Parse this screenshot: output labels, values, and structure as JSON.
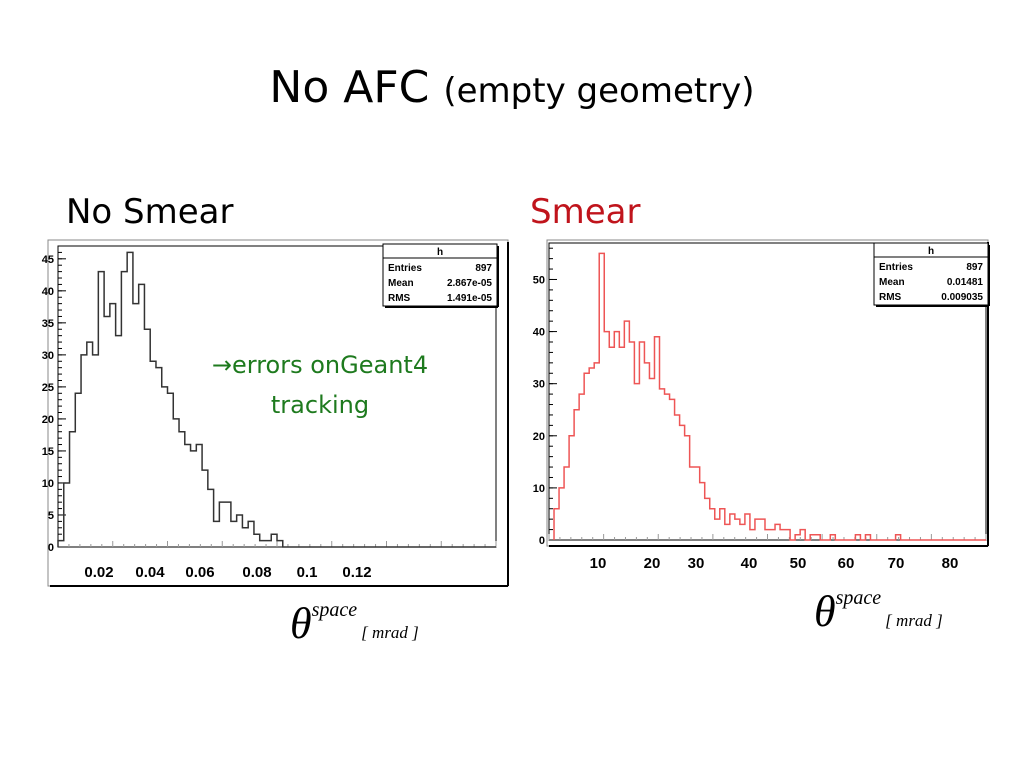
{
  "slide": {
    "title_main": "No AFC",
    "title_sub": "(empty geometry)",
    "left_label": "No Smear",
    "right_label": "Smear",
    "note_arrow": "→",
    "note_line1": "errors onGeant4",
    "note_line2": "tracking",
    "colors": {
      "right_label": "#c0141c",
      "note": "#1e7a1e",
      "left_hist": "#333333",
      "right_hist": "#ee5555"
    }
  },
  "chart_data": [
    {
      "type": "bar",
      "hist_name": "h",
      "stats": {
        "entries_label": "Entries",
        "entries": "897",
        "mean_label": "Mean",
        "mean": "2.867e-05",
        "rms_label": "RMS",
        "rms": "1.491e-05"
      },
      "x": [
        0.0025,
        0.0075,
        0.0125,
        0.0175,
        0.0225,
        0.0275,
        0.0325,
        0.0375,
        0.0425,
        0.0475,
        0.0525,
        0.0575,
        0.0625,
        0.0675,
        0.0725,
        0.0775,
        0.0825,
        0.0875,
        0.0925,
        0.0975,
        0.1025,
        0.1075,
        0.1125,
        0.1175,
        0.1225,
        0.1275,
        0.1325,
        0.1375,
        0.1425,
        0.1475,
        0.1525,
        0.1575,
        0.1625,
        0.1675,
        0.1725,
        0.1775,
        0.1825,
        0.1875,
        0.1925,
        0.1975,
        0.2025,
        0.2075,
        0.2125,
        0.2175,
        0.2225,
        0.2275,
        0.2325,
        0.2375,
        0.2425,
        0.2475,
        0.2525,
        0.2575,
        0.2625,
        0.2675,
        0.2725,
        0.2775,
        0.2825,
        0.2875,
        0.2925,
        0.2975,
        0.3025,
        0.3075,
        0.3125,
        0.3175,
        0.3225,
        0.3275,
        0.3375,
        0.3325,
        0.3425,
        0.3475,
        0.3525,
        0.3575,
        0.3625,
        0.3675,
        0.3725,
        0.3775
      ],
      "values": [
        1,
        10,
        18,
        24,
        30,
        32,
        30,
        43,
        36,
        38,
        33,
        43,
        46,
        38,
        41,
        34,
        29,
        28,
        25,
        24,
        20,
        18,
        16,
        15,
        16,
        12,
        9,
        4,
        7,
        7,
        4,
        5,
        3,
        4,
        2,
        1,
        1,
        2,
        1,
        0,
        0,
        0,
        0,
        0,
        0,
        0,
        0,
        0,
        0,
        0,
        0,
        0,
        0,
        0,
        0,
        0,
        0,
        0,
        0,
        0,
        0,
        0,
        0,
        0,
        0,
        0,
        0,
        0,
        0,
        0,
        0,
        0,
        0,
        0,
        0,
        0
      ],
      "xlim": [
        0,
        0.38
      ],
      "ylim": [
        0,
        47
      ],
      "yticks": [
        0,
        5,
        10,
        15,
        20,
        25,
        30,
        35,
        40,
        45
      ],
      "xticklabels": [
        "0.02",
        "0.04",
        "0.06",
        "0.08",
        "0.1",
        "0.12"
      ],
      "xlabel_symbol": "θ",
      "xlabel_sup": "space",
      "xlabel_unit": "[ mrad ]"
    },
    {
      "type": "bar",
      "hist_name": "h",
      "stats": {
        "entries_label": "Entries",
        "entries": "897",
        "mean_label": "Mean",
        "mean": "0.01481",
        "rms_label": "RMS",
        "rms": "0.009035"
      },
      "x": [
        1.5,
        2.5,
        3.5,
        4.5,
        5.5,
        6.5,
        7.5,
        8.5,
        9.5,
        10.5,
        11.5,
        12.5,
        13.5,
        14.5,
        15.5,
        16.5,
        17.5,
        18.5,
        19.5,
        20.5,
        21.5,
        22.5,
        23.5,
        24.5,
        25.5,
        26.5,
        27.5,
        28.5,
        29.5,
        30.5,
        31.5,
        32.5,
        33.5,
        34.5,
        35.5,
        36.5,
        37.5,
        38.5,
        39.5,
        40.5,
        41.5,
        42.5,
        43.5,
        44.5,
        45.5,
        46.5,
        47.5,
        48.5,
        49.5,
        50.5,
        51.5,
        52.5,
        53.5,
        54.5,
        55.5,
        56.5,
        57.5,
        58.5,
        59.5,
        60.5,
        61.5,
        62.5,
        63.5,
        64.5,
        65.5,
        66.5,
        67.5,
        68.5,
        69.5,
        70.5,
        71.5,
        72.5,
        73.5,
        74.5,
        75.5,
        76.5,
        77.5,
        78.5,
        79.5,
        80.5,
        81.5,
        82.5,
        83.5,
        84.5,
        85.5,
        86.5
      ],
      "values": [
        6,
        10,
        14,
        20,
        25,
        28,
        32,
        33,
        34,
        55,
        40,
        37,
        40,
        37,
        42,
        38,
        30,
        38,
        34,
        31,
        39,
        29,
        28,
        27,
        24,
        22,
        20,
        14,
        14,
        11,
        8,
        6,
        4,
        6,
        3,
        5,
        4,
        3,
        5,
        2,
        4,
        4,
        2,
        2,
        3,
        2,
        2,
        0,
        1,
        2,
        0,
        1,
        1,
        0,
        0,
        1,
        0,
        0,
        0,
        0,
        1,
        0,
        1,
        0,
        0,
        0,
        0,
        0,
        1,
        0,
        0,
        0,
        0,
        0,
        0,
        0,
        0,
        0,
        0,
        0,
        0,
        0,
        0,
        0,
        0,
        0
      ],
      "xlim": [
        0,
        87
      ],
      "ylim": [
        0,
        57
      ],
      "yticks": [
        0,
        10,
        20,
        30,
        40,
        50
      ],
      "xticklabels": [
        "10",
        "20",
        "30",
        "40",
        "50",
        "60",
        "70",
        "80"
      ],
      "xlabel_symbol": "θ",
      "xlabel_sup": "space",
      "xlabel_unit": "[ mrad ]"
    }
  ]
}
